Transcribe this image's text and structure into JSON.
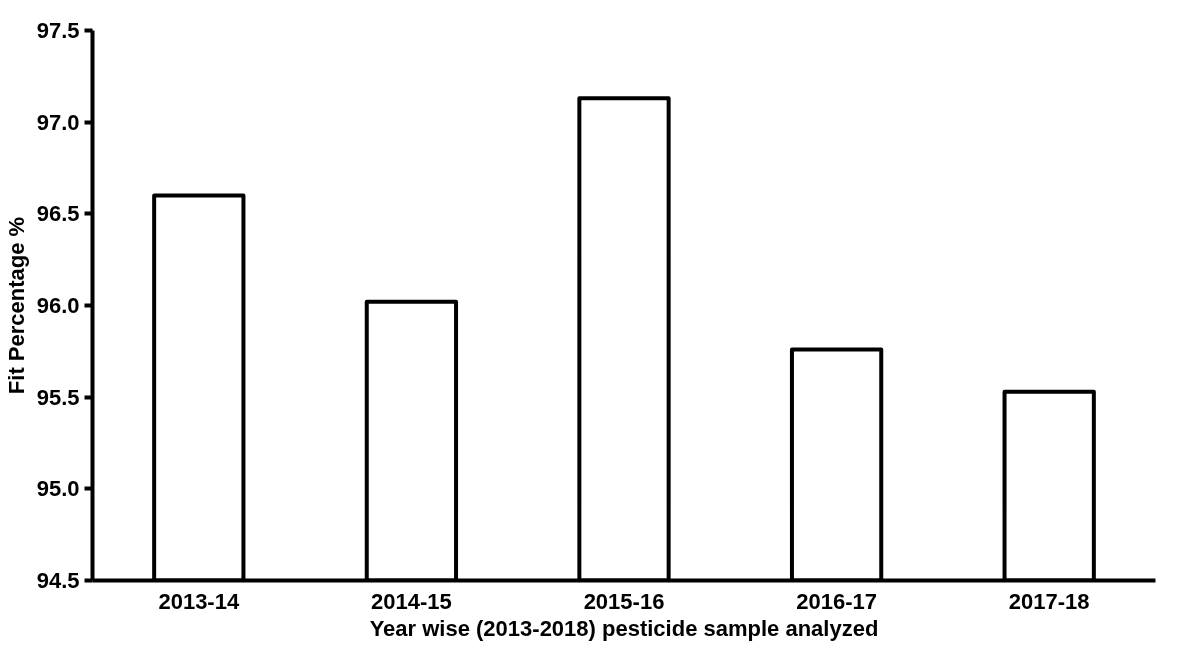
{
  "chart_data": {
    "type": "bar",
    "xlabel": "Year wise (2013-2018) pesticide sample analyzed",
    "ylabel": "Fit Percentage %",
    "categories": [
      "2013-14",
      "2014-15",
      "2015-16",
      "2016-17",
      "2017-18"
    ],
    "values": [
      96.6,
      96.02,
      97.13,
      95.76,
      95.53
    ],
    "color": "#ffffff",
    "ylim": [
      94.5,
      97.5
    ],
    "yticks": [
      {
        "value": 94.5,
        "label": "94.5"
      },
      {
        "value": 95.0,
        "label": "95.0"
      },
      {
        "value": 95.5,
        "label": "95.5"
      },
      {
        "value": 96.0,
        "label": "96.0"
      },
      {
        "value": 96.5,
        "label": "96.5"
      },
      {
        "value": 97.0,
        "label": "97.0"
      },
      {
        "value": 97.5,
        "label": "97.5"
      }
    ],
    "grid": false
  }
}
